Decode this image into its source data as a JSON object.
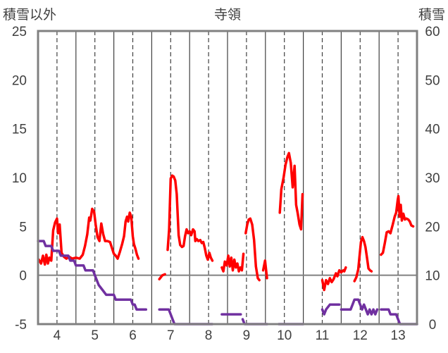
{
  "chart_data": {
    "type": "line",
    "title": "寺領",
    "ylabel_left": "積雪以外",
    "ylabel_right": "積雪",
    "xlim": [
      3.5,
      13.5
    ],
    "x_ticks": [
      "4",
      "5",
      "6",
      "7",
      "8",
      "9",
      "10",
      "11",
      "12",
      "13"
    ],
    "y_left_range": [
      -5,
      25
    ],
    "y_left_ticks": [
      "-5",
      "0",
      "5",
      "10",
      "15",
      "20",
      "25"
    ],
    "y_right_range": [
      0,
      60
    ],
    "y_right_ticks": [
      "0",
      "10",
      "20",
      "30",
      "40",
      "50",
      "60"
    ],
    "grid": "dashed vertical at integer days, solid vertical at half days",
    "colors": {
      "red": "#ff0000",
      "purple": "#7030a0",
      "frame": "#808080",
      "grid": "#404040",
      "zero_line": "#808080"
    },
    "series": [
      {
        "color": "red",
        "axis": "left",
        "segments": [
          [
            [
              3.52,
              1.6
            ],
            [
              3.58,
              1.2
            ],
            [
              3.63,
              2.0
            ],
            [
              3.68,
              1.1
            ],
            [
              3.72,
              2.1
            ],
            [
              3.76,
              1.2
            ],
            [
              3.8,
              1.8
            ],
            [
              3.85,
              1.5
            ],
            [
              3.9,
              4.6
            ],
            [
              3.95,
              5.4
            ],
            [
              4.0,
              5.8
            ],
            [
              4.03,
              4.3
            ],
            [
              4.07,
              5.2
            ],
            [
              4.12,
              2.3
            ],
            [
              4.18,
              1.9
            ],
            [
              4.25,
              1.7
            ],
            [
              4.32,
              1.9
            ],
            [
              4.4,
              1.7
            ],
            [
              4.5,
              1.8
            ],
            [
              4.6,
              1.7
            ],
            [
              4.68,
              2.1
            ],
            [
              4.74,
              3.0
            ],
            [
              4.8,
              4.2
            ],
            [
              4.85,
              5.9
            ],
            [
              4.88,
              5.6
            ],
            [
              4.93,
              6.8
            ],
            [
              4.98,
              6.5
            ],
            [
              5.02,
              5.2
            ],
            [
              5.07,
              3.9
            ],
            [
              5.12,
              3.5
            ],
            [
              5.17,
              5.3
            ],
            [
              5.22,
              4.2
            ],
            [
              5.27,
              3.5
            ],
            [
              5.33,
              3.5
            ],
            [
              5.4,
              3.4
            ],
            [
              5.45,
              2.8
            ],
            [
              5.5,
              2.2
            ],
            [
              5.55,
              2.0
            ],
            [
              5.6,
              1.7
            ],
            [
              5.66,
              2.4
            ],
            [
              5.72,
              3.2
            ],
            [
              5.77,
              4.0
            ],
            [
              5.81,
              5.5
            ],
            [
              5.85,
              6.0
            ],
            [
              5.88,
              5.5
            ],
            [
              5.92,
              6.4
            ],
            [
              5.96,
              6.0
            ],
            [
              6.0,
              4.0
            ],
            [
              6.03,
              3.2
            ],
            [
              6.07,
              2.7
            ],
            [
              6.11,
              2.1
            ],
            [
              6.15,
              1.7
            ]
          ],
          [
            [
              6.7,
              -0.4
            ],
            [
              6.78,
              0.0
            ],
            [
              6.85,
              0.1
            ]
          ],
          [
            [
              6.92,
              2.6
            ],
            [
              6.96,
              4.7
            ],
            [
              7.0,
              9.9
            ],
            [
              7.04,
              10.2
            ],
            [
              7.08,
              10.1
            ],
            [
              7.12,
              9.7
            ],
            [
              7.16,
              8.3
            ],
            [
              7.21,
              4.1
            ],
            [
              7.25,
              3.1
            ],
            [
              7.3,
              2.9
            ],
            [
              7.34,
              3.0
            ],
            [
              7.38,
              4.0
            ],
            [
              7.42,
              4.7
            ],
            [
              7.46,
              4.3
            ],
            [
              7.5,
              4.5
            ],
            [
              7.54,
              4.1
            ],
            [
              7.59,
              4.7
            ],
            [
              7.63,
              4.5
            ],
            [
              7.65,
              3.5
            ],
            [
              7.69,
              3.7
            ],
            [
              7.73,
              3.5
            ],
            [
              7.78,
              3.6
            ],
            [
              7.82,
              3.3
            ],
            [
              7.86,
              3.4
            ],
            [
              7.9,
              2.8
            ],
            [
              7.94,
              2.0
            ],
            [
              7.98,
              1.6
            ],
            [
              8.02,
              2.3
            ],
            [
              8.06,
              1.8
            ],
            [
              8.1,
              1.5
            ]
          ],
          [
            [
              8.35,
              0.8
            ],
            [
              8.39,
              0.4
            ],
            [
              8.43,
              1.4
            ],
            [
              8.48,
              1.0
            ],
            [
              8.52,
              2.0
            ],
            [
              8.56,
              0.9
            ],
            [
              8.6,
              1.8
            ],
            [
              8.64,
              0.5
            ],
            [
              8.68,
              1.6
            ],
            [
              8.72,
              0.8
            ],
            [
              8.76,
              1.2
            ],
            [
              8.8,
              0.4
            ],
            [
              8.84,
              0.8
            ],
            [
              8.88,
              0.5
            ],
            [
              8.92,
              2.2
            ]
          ],
          [
            [
              8.98,
              4.3
            ],
            [
              9.02,
              5.2
            ],
            [
              9.06,
              5.7
            ],
            [
              9.1,
              5.8
            ],
            [
              9.15,
              5.2
            ],
            [
              9.2,
              3.6
            ],
            [
              9.25,
              0.9
            ],
            [
              9.3,
              -0.3
            ],
            [
              9.34,
              -0.5
            ]
          ],
          [
            [
              9.44,
              0.5
            ],
            [
              9.49,
              1.5
            ],
            [
              9.54,
              -0.3
            ]
          ],
          [
            [
              9.88,
              6.4
            ],
            [
              9.92,
              8.8
            ],
            [
              9.98,
              10.0
            ],
            [
              10.03,
              11.3
            ],
            [
              10.08,
              12.1
            ],
            [
              10.12,
              12.5
            ],
            [
              10.17,
              11.5
            ],
            [
              10.22,
              9.0
            ],
            [
              10.27,
              11.2
            ],
            [
              10.31,
              7.2
            ],
            [
              10.35,
              6.4
            ],
            [
              10.4,
              5.2
            ],
            [
              10.44,
              4.7
            ],
            [
              10.48,
              8.3
            ]
          ],
          [
            [
              11.0,
              -0.5
            ],
            [
              11.05,
              -1.5
            ],
            [
              11.1,
              -0.5
            ],
            [
              11.15,
              -0.9
            ],
            [
              11.2,
              -0.3
            ],
            [
              11.25,
              -0.7
            ],
            [
              11.3,
              -0.4
            ],
            [
              11.36,
              0.2
            ],
            [
              11.4,
              -0.1
            ],
            [
              11.45,
              0.5
            ],
            [
              11.5,
              0.3
            ],
            [
              11.55,
              0.5
            ],
            [
              11.58,
              0.4
            ],
            [
              11.62,
              0.8
            ]
          ],
          [
            [
              11.85,
              -0.6
            ],
            [
              11.9,
              -0.2
            ],
            [
              11.95,
              0.6
            ],
            [
              11.98,
              1.8
            ],
            [
              12.02,
              3.4
            ],
            [
              12.06,
              3.9
            ],
            [
              12.1,
              3.5
            ],
            [
              12.14,
              2.9
            ],
            [
              12.18,
              1.8
            ],
            [
              12.22,
              0.7
            ],
            [
              12.26,
              0.5
            ],
            [
              12.3,
              0.4
            ]
          ],
          [
            [
              12.55,
              2.1
            ],
            [
              12.6,
              2.3
            ],
            [
              12.65,
              3.3
            ],
            [
              12.7,
              4.4
            ],
            [
              12.75,
              4.5
            ],
            [
              12.8,
              4.3
            ],
            [
              12.86,
              5.2
            ],
            [
              12.91,
              6.0
            ],
            [
              12.95,
              6.4
            ],
            [
              12.99,
              7.7
            ],
            [
              13.01,
              8.1
            ],
            [
              13.04,
              6.0
            ],
            [
              13.07,
              7.2
            ],
            [
              13.1,
              5.6
            ],
            [
              13.14,
              6.3
            ],
            [
              13.18,
              5.7
            ],
            [
              13.22,
              5.8
            ],
            [
              13.27,
              5.7
            ],
            [
              13.31,
              5.5
            ],
            [
              13.35,
              5.1
            ],
            [
              13.4,
              5.0
            ]
          ]
        ]
      },
      {
        "color": "purple",
        "axis": "left",
        "segments": [
          [
            [
              3.5,
              3.5
            ],
            [
              3.65,
              3.5
            ],
            [
              3.7,
              3.0
            ],
            [
              3.85,
              3.0
            ],
            [
              3.9,
              2.5
            ],
            [
              4.05,
              2.5
            ],
            [
              4.1,
              2.0
            ],
            [
              4.3,
              2.0
            ],
            [
              4.35,
              1.5
            ],
            [
              4.45,
              1.5
            ],
            [
              4.5,
              1.0
            ],
            [
              4.7,
              1.0
            ],
            [
              4.75,
              0.5
            ],
            [
              4.95,
              0.5
            ],
            [
              5.0,
              0.0
            ],
            [
              5.05,
              -0.5
            ],
            [
              5.1,
              -1.0
            ],
            [
              5.2,
              -1.5
            ],
            [
              5.3,
              -2.0
            ],
            [
              5.5,
              -2.0
            ],
            [
              5.55,
              -2.5
            ],
            [
              5.95,
              -2.5
            ],
            [
              6.0,
              -3.0
            ],
            [
              6.05,
              -3.0
            ],
            [
              6.1,
              -3.5
            ],
            [
              6.35,
              -3.5
            ]
          ],
          [
            [
              6.7,
              -3.5
            ],
            [
              6.95,
              -3.5
            ],
            [
              7.0,
              -4.0
            ],
            [
              7.05,
              -4.5
            ],
            [
              7.1,
              -5.0
            ],
            [
              8.1,
              -5.0
            ]
          ],
          [
            [
              8.35,
              -4.0
            ],
            [
              8.85,
              -4.0
            ]
          ],
          [
            [
              8.9,
              -4.5
            ],
            [
              8.95,
              -5.0
            ],
            [
              9.55,
              -5.0
            ]
          ],
          [
            [
              9.85,
              -5.0
            ],
            [
              10.5,
              -5.0
            ]
          ],
          [
            [
              11.0,
              -3.5
            ],
            [
              11.05,
              -4.0
            ],
            [
              11.1,
              -3.5
            ],
            [
              11.2,
              -3.0
            ],
            [
              11.45,
              -3.0
            ]
          ],
          [
            [
              11.5,
              -3.5
            ],
            [
              11.75,
              -3.5
            ],
            [
              11.8,
              -3.0
            ],
            [
              11.85,
              -2.5
            ],
            [
              11.95,
              -2.5
            ],
            [
              12.0,
              -3.0
            ],
            [
              12.05,
              -3.5
            ],
            [
              12.1,
              -3.0
            ],
            [
              12.15,
              -3.5
            ],
            [
              12.2,
              -4.0
            ],
            [
              12.25,
              -3.5
            ],
            [
              12.3,
              -4.0
            ],
            [
              12.35,
              -3.5
            ],
            [
              12.4,
              -4.0
            ],
            [
              12.45,
              -3.5
            ]
          ],
          [
            [
              12.55,
              -3.5
            ],
            [
              12.75,
              -3.5
            ],
            [
              12.8,
              -4.0
            ],
            [
              12.95,
              -4.0
            ],
            [
              13.0,
              -4.5
            ],
            [
              13.05,
              -5.0
            ],
            [
              13.5,
              -5.0
            ]
          ]
        ]
      }
    ]
  }
}
